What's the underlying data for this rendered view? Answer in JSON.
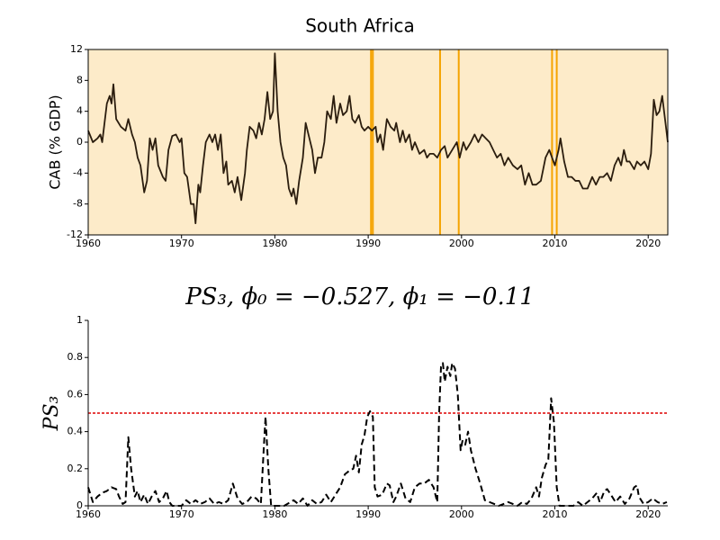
{
  "chart_data": [
    {
      "type": "line",
      "title": "South Africa",
      "y_label": "CAB (% GDP)",
      "shade_color": "#fdebc9",
      "frame": "box",
      "vline_color": "#f5a300",
      "xlim": [
        1960,
        2022.1
      ],
      "xticks": [
        1960,
        1970,
        1980,
        1990,
        2000,
        2010,
        2020
      ],
      "ylim": [
        -12,
        12
      ],
      "yticks": [
        -12,
        -8,
        -4,
        0,
        4,
        8,
        12
      ],
      "vlines": [
        1990.3,
        1990.5,
        1997.7,
        1999.7,
        2009.7,
        2010.2
      ],
      "series": [
        {
          "color": "#2b1d0e",
          "dash": "solid",
          "x": [
            1960,
            1960.5,
            1961,
            1961.3,
            1961.5,
            1962,
            1962.3,
            1962.5,
            1962.7,
            1963,
            1963.5,
            1964,
            1964.3,
            1964.7,
            1965,
            1965.3,
            1965.6,
            1966,
            1966.3,
            1966.6,
            1966.9,
            1967.2,
            1967.5,
            1968,
            1968.3,
            1968.6,
            1969,
            1969.4,
            1969.8,
            1970,
            1970.3,
            1970.6,
            1971,
            1971.3,
            1971.5,
            1971.8,
            1972,
            1972.3,
            1972.6,
            1973,
            1973.3,
            1973.6,
            1973.9,
            1974.2,
            1974.5,
            1974.8,
            1975,
            1975.4,
            1975.7,
            1976,
            1976.4,
            1976.8,
            1977,
            1977.3,
            1977.7,
            1978,
            1978.3,
            1978.6,
            1978.9,
            1979.2,
            1979.5,
            1979.8,
            1980,
            1980.3,
            1980.6,
            1980.9,
            1981.2,
            1981.5,
            1981.8,
            1982,
            1982.3,
            1982.6,
            1983,
            1983.3,
            1983.6,
            1984,
            1984.3,
            1984.6,
            1985,
            1985.3,
            1985.6,
            1986,
            1986.3,
            1986.6,
            1987,
            1987.3,
            1987.7,
            1988,
            1988.3,
            1988.6,
            1989,
            1989.3,
            1989.6,
            1990,
            1990.4,
            1990.8,
            1991,
            1991.3,
            1991.6,
            1992,
            1992.4,
            1992.8,
            1993,
            1993.4,
            1993.7,
            1994,
            1994.4,
            1994.7,
            1995,
            1995.5,
            1996,
            1996.3,
            1996.6,
            1997,
            1997.4,
            1997.8,
            1998.2,
            1998.5,
            1999,
            1999.5,
            1999.8,
            2000.2,
            2000.5,
            2001,
            2001.4,
            2001.8,
            2002.2,
            2002.6,
            2003,
            2003.4,
            2003.8,
            2004.2,
            2004.6,
            2005,
            2005.5,
            2006,
            2006.4,
            2006.8,
            2007.2,
            2007.6,
            2008,
            2008.5,
            2009,
            2009.4,
            2009.7,
            2010,
            2010.4,
            2010.6,
            2011,
            2011.4,
            2011.8,
            2012.2,
            2012.6,
            2013,
            2013.5,
            2014,
            2014.4,
            2014.8,
            2015.2,
            2015.6,
            2016,
            2016.4,
            2016.8,
            2017.1,
            2017.4,
            2017.7,
            2018,
            2018.5,
            2018.8,
            2019.2,
            2019.6,
            2020,
            2020.3,
            2020.6,
            2020.9,
            2021.2,
            2021.5,
            2021.8,
            2022.1
          ],
          "values": [
            1.5,
            0,
            0.5,
            1,
            0,
            5,
            6,
            5,
            7.5,
            3,
            2,
            1.5,
            3,
            1,
            0,
            -2,
            -3,
            -6.5,
            -5,
            0.5,
            -1,
            0.5,
            -3,
            -4.5,
            -5,
            -1,
            0.8,
            1,
            0,
            0.5,
            -4,
            -4.5,
            -8,
            -8,
            -10.5,
            -5.5,
            -6.5,
            -3,
            0,
            1,
            0,
            1,
            -1,
            1,
            -4,
            -2.5,
            -5.5,
            -5,
            -6.5,
            -4.5,
            -7.5,
            -4,
            -1,
            2,
            1.5,
            0.5,
            2.5,
            1,
            3,
            6.5,
            3,
            4,
            11.5,
            4,
            0,
            -2,
            -3,
            -6,
            -7,
            -6,
            -8,
            -5,
            -2,
            2.5,
            1,
            -1,
            -4,
            -2,
            -2,
            0,
            4,
            3,
            6,
            2.5,
            5,
            3.5,
            4,
            6,
            3,
            2.5,
            3.5,
            2,
            1.5,
            2,
            1.5,
            2,
            0,
            1,
            -1,
            3,
            2,
            1.5,
            2.5,
            0,
            1.5,
            0,
            1,
            -1,
            0,
            -1.5,
            -1,
            -2,
            -1.5,
            -1.5,
            -2,
            -1,
            -0.5,
            -2,
            -1,
            0,
            -2,
            0,
            -1,
            0,
            1,
            0,
            1,
            0.5,
            0,
            -1,
            -2,
            -1.5,
            -3,
            -2,
            -3,
            -3.5,
            -3,
            -5.5,
            -4,
            -5.5,
            -5.5,
            -5,
            -2,
            -1,
            -2,
            -3,
            -1,
            0.5,
            -2.5,
            -4.5,
            -4.5,
            -5,
            -5,
            -6,
            -6,
            -4.5,
            -5.5,
            -4.5,
            -4.5,
            -4,
            -5,
            -3,
            -2,
            -3,
            -1,
            -2.5,
            -2.5,
            -3.5,
            -2.5,
            -3,
            -2.5,
            -3.5,
            -1.5,
            5.5,
            3.5,
            4,
            6,
            3,
            0
          ]
        }
      ]
    },
    {
      "type": "line",
      "title": "PS₃, ϕ₀ = −0.527, ϕ₁ = −0.11",
      "y_label": "PS₃",
      "frame": "axes",
      "hline": 0.5,
      "hline_color": "#dd0000",
      "xlim": [
        1960,
        2022.1
      ],
      "xticks": [
        1960,
        1970,
        1980,
        1990,
        2000,
        2010,
        2020
      ],
      "ylim": [
        0,
        1
      ],
      "yticks": [
        0,
        0.2,
        0.4,
        0.6,
        0.8,
        1
      ],
      "series": [
        {
          "color": "#000000",
          "dash": "dashed",
          "x": [
            1960,
            1960.5,
            1961,
            1961.5,
            1962,
            1962.5,
            1963,
            1963.3,
            1963.7,
            1964,
            1964.3,
            1964.6,
            1965,
            1965.3,
            1965.6,
            1966,
            1966.4,
            1966.8,
            1967.2,
            1967.6,
            1968,
            1968.4,
            1968.7,
            1969,
            1970,
            1970.5,
            1971,
            1971.5,
            1972,
            1972.5,
            1973,
            1973.5,
            1974,
            1974.5,
            1975,
            1975.5,
            1976,
            1976.5,
            1977,
            1977.5,
            1978,
            1978.5,
            1978.8,
            1979,
            1979.3,
            1979.6,
            1980,
            1981,
            1982,
            1982.5,
            1983,
            1983.5,
            1984,
            1984.5,
            1985,
            1985.5,
            1986,
            1986.5,
            1987,
            1987.5,
            1988,
            1988.4,
            1988.7,
            1989,
            1989.3,
            1989.6,
            1989.9,
            1990.2,
            1990.5,
            1990.7,
            1991,
            1991.5,
            1992,
            1992.3,
            1992.7,
            1993,
            1993.5,
            1994,
            1994.5,
            1995,
            1995.5,
            1996,
            1996.5,
            1997,
            1997.4,
            1997.6,
            1997.8,
            1998,
            1998.2,
            1998.5,
            1998.8,
            1999,
            1999.3,
            1999.6,
            1999.9,
            2000.1,
            2000.4,
            2000.7,
            2001,
            2001.5,
            2002,
            2002.5,
            2003,
            2003.5,
            2004,
            2005,
            2005.5,
            2006,
            2006.5,
            2007,
            2007.5,
            2008,
            2008.3,
            2008.6,
            2009,
            2009.3,
            2009.6,
            2009.9,
            2010.2,
            2010.5,
            2011,
            2012,
            2012.5,
            2013,
            2013.5,
            2014,
            2014.5,
            2014.8,
            2015,
            2015.3,
            2015.6,
            2016,
            2016.5,
            2017,
            2017.5,
            2018,
            2018.5,
            2018.8,
            2019,
            2019.5,
            2020,
            2020.5,
            2021,
            2021.5,
            2022
          ],
          "values": [
            0.1,
            0.02,
            0.05,
            0.07,
            0.08,
            0.1,
            0.09,
            0.05,
            0.01,
            0.02,
            0.37,
            0.2,
            0.05,
            0.08,
            0.02,
            0.06,
            0.01,
            0.05,
            0.08,
            0.02,
            0.04,
            0.08,
            0.02,
            0,
            0,
            0.03,
            0.01,
            0.03,
            0.01,
            0.02,
            0.04,
            0.01,
            0.02,
            0.01,
            0.03,
            0.12,
            0.04,
            0.01,
            0.02,
            0.05,
            0.04,
            0.01,
            0.3,
            0.48,
            0.2,
            0,
            0,
            0,
            0.03,
            0.01,
            0.04,
            0,
            0.03,
            0.01,
            0.02,
            0.06,
            0.02,
            0.06,
            0.1,
            0.17,
            0.19,
            0.2,
            0.27,
            0.18,
            0.33,
            0.38,
            0.48,
            0.51,
            0.48,
            0.1,
            0.05,
            0.06,
            0.12,
            0.11,
            0.02,
            0.05,
            0.12,
            0.04,
            0.02,
            0.1,
            0.12,
            0.12,
            0.14,
            0.1,
            0.02,
            0.5,
            0.75,
            0.77,
            0.67,
            0.75,
            0.7,
            0.77,
            0.74,
            0.6,
            0.3,
            0.35,
            0.33,
            0.4,
            0.3,
            0.2,
            0.12,
            0.03,
            0.02,
            0.01,
            0,
            0.02,
            0.01,
            0,
            0.02,
            0.01,
            0.04,
            0.1,
            0.05,
            0.15,
            0.22,
            0.25,
            0.58,
            0.45,
            0.1,
            0,
            0,
            0,
            0.02,
            0,
            0.02,
            0.04,
            0.07,
            0.02,
            0.04,
            0.08,
            0.09,
            0.06,
            0.02,
            0.05,
            0.01,
            0.04,
            0.1,
            0.11,
            0.05,
            0.01,
            0.02,
            0.04,
            0.02,
            0.01,
            0.02
          ]
        }
      ]
    }
  ]
}
